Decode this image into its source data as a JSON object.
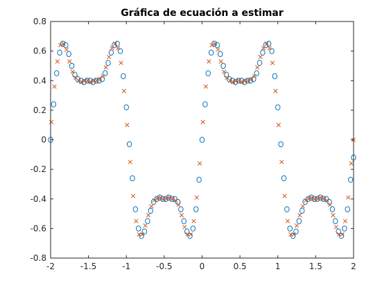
{
  "chart_data": {
    "type": "scatter",
    "title": "Gráfica de ecuación a estimar",
    "xlabel": "",
    "ylabel": "",
    "xlim": [
      -2,
      2
    ],
    "ylim": [
      -0.8,
      0.8
    ],
    "x_ticks": [
      -2,
      -1.5,
      -1,
      -0.5,
      0,
      0.5,
      1,
      1.5,
      2
    ],
    "x_tick_labels": [
      "-2",
      "-1.5",
      "-1",
      "-0.5",
      "0",
      "0.5",
      "1",
      "1.5",
      "2"
    ],
    "y_ticks": [
      -0.8,
      -0.6,
      -0.4,
      -0.2,
      0,
      0.2,
      0.4,
      0.6,
      0.8
    ],
    "y_tick_labels": [
      "-0.8",
      "-0.6",
      "-0.4",
      "-0.2",
      "0",
      "0.2",
      "0.4",
      "0.6",
      "0.8"
    ],
    "grid": false,
    "box": true,
    "series": [
      {
        "marker": "circle",
        "color": "#0072BD",
        "x": [
          -2.0,
          -1.96,
          -1.92,
          -1.88,
          -1.84,
          -1.8,
          -1.76,
          -1.72,
          -1.68,
          -1.64,
          -1.6,
          -1.56,
          -1.52,
          -1.48,
          -1.44,
          -1.4,
          -1.36,
          -1.32,
          -1.28,
          -1.24,
          -1.2,
          -1.16,
          -1.12,
          -1.08,
          -1.04,
          -1.0,
          -0.96,
          -0.92,
          -0.88,
          -0.84,
          -0.8,
          -0.76,
          -0.72,
          -0.68,
          -0.64,
          -0.6,
          -0.56,
          -0.52,
          -0.48,
          -0.44,
          -0.4,
          -0.36,
          -0.32,
          -0.28,
          -0.24,
          -0.2,
          -0.16,
          -0.12,
          -0.08,
          -0.04,
          0.0,
          0.04,
          0.08,
          0.12,
          0.16,
          0.2,
          0.24,
          0.28,
          0.32,
          0.36,
          0.4,
          0.44,
          0.48,
          0.52,
          0.56,
          0.6,
          0.64,
          0.68,
          0.72,
          0.76,
          0.8,
          0.84,
          0.88,
          0.92,
          0.96,
          1.0,
          1.04,
          1.08,
          1.12,
          1.16,
          1.2,
          1.24,
          1.28,
          1.32,
          1.36,
          1.4,
          1.44,
          1.48,
          1.52,
          1.56,
          1.6,
          1.64,
          1.68,
          1.72,
          1.76,
          1.8,
          1.84,
          1.88,
          1.92,
          1.96,
          2.0
        ],
        "y": [
          0.0,
          0.24,
          0.45,
          0.59,
          0.65,
          0.64,
          0.58,
          0.5,
          0.44,
          0.41,
          0.4,
          0.39,
          0.4,
          0.4,
          0.39,
          0.4,
          0.4,
          0.41,
          0.45,
          0.52,
          0.59,
          0.64,
          0.65,
          0.6,
          0.43,
          0.22,
          -0.03,
          -0.26,
          -0.47,
          -0.6,
          -0.65,
          -0.62,
          -0.55,
          -0.48,
          -0.42,
          -0.4,
          -0.39,
          -0.4,
          -0.4,
          -0.39,
          -0.4,
          -0.4,
          -0.42,
          -0.47,
          -0.55,
          -0.62,
          -0.65,
          -0.6,
          -0.47,
          -0.27,
          0.0,
          0.24,
          0.45,
          0.59,
          0.65,
          0.64,
          0.58,
          0.5,
          0.44,
          0.41,
          0.4,
          0.39,
          0.4,
          0.4,
          0.39,
          0.4,
          0.4,
          0.41,
          0.45,
          0.52,
          0.59,
          0.64,
          0.65,
          0.6,
          0.43,
          0.22,
          -0.03,
          -0.26,
          -0.47,
          -0.6,
          -0.65,
          -0.62,
          -0.55,
          -0.48,
          -0.42,
          -0.4,
          -0.39,
          -0.4,
          -0.4,
          -0.39,
          -0.4,
          -0.4,
          -0.42,
          -0.47,
          -0.55,
          -0.62,
          -0.65,
          -0.6,
          -0.47,
          -0.27,
          -0.12
        ]
      },
      {
        "marker": "x",
        "color": "#D95319",
        "x": [
          -1.99,
          -1.95,
          -1.91,
          -1.87,
          -1.83,
          -1.79,
          -1.75,
          -1.71,
          -1.67,
          -1.63,
          -1.59,
          -1.55,
          -1.51,
          -1.47,
          -1.43,
          -1.39,
          -1.35,
          -1.31,
          -1.27,
          -1.23,
          -1.19,
          -1.15,
          -1.11,
          -1.07,
          -1.03,
          -0.99,
          -0.95,
          -0.91,
          -0.87,
          -0.83,
          -0.79,
          -0.75,
          -0.71,
          -0.67,
          -0.63,
          -0.59,
          -0.55,
          -0.51,
          -0.47,
          -0.43,
          -0.39,
          -0.35,
          -0.31,
          -0.27,
          -0.23,
          -0.19,
          -0.15,
          -0.11,
          -0.07,
          -0.03,
          0.01,
          0.05,
          0.09,
          0.13,
          0.17,
          0.21,
          0.25,
          0.29,
          0.33,
          0.37,
          0.41,
          0.45,
          0.49,
          0.53,
          0.57,
          0.61,
          0.65,
          0.69,
          0.73,
          0.77,
          0.81,
          0.85,
          0.89,
          0.93,
          0.97,
          1.01,
          1.05,
          1.09,
          1.13,
          1.17,
          1.21,
          1.25,
          1.29,
          1.33,
          1.37,
          1.41,
          1.45,
          1.49,
          1.53,
          1.57,
          1.61,
          1.65,
          1.69,
          1.73,
          1.77,
          1.81,
          1.85,
          1.89,
          1.93,
          1.97,
          2.0
        ],
        "y": [
          0.12,
          0.36,
          0.53,
          0.64,
          0.65,
          0.61,
          0.53,
          0.46,
          0.42,
          0.4,
          0.39,
          0.4,
          0.4,
          0.39,
          0.4,
          0.4,
          0.41,
          0.43,
          0.49,
          0.56,
          0.62,
          0.65,
          0.62,
          0.52,
          0.33,
          0.1,
          -0.15,
          -0.38,
          -0.55,
          -0.64,
          -0.64,
          -0.58,
          -0.51,
          -0.45,
          -0.41,
          -0.4,
          -0.39,
          -0.4,
          -0.4,
          -0.39,
          -0.4,
          -0.41,
          -0.44,
          -0.51,
          -0.59,
          -0.64,
          -0.64,
          -0.55,
          -0.39,
          -0.16,
          0.12,
          0.36,
          0.53,
          0.64,
          0.65,
          0.61,
          0.53,
          0.46,
          0.42,
          0.4,
          0.39,
          0.4,
          0.4,
          0.39,
          0.4,
          0.4,
          0.41,
          0.43,
          0.49,
          0.56,
          0.62,
          0.65,
          0.62,
          0.52,
          0.33,
          0.1,
          -0.15,
          -0.38,
          -0.55,
          -0.64,
          -0.64,
          -0.58,
          -0.51,
          -0.45,
          -0.41,
          -0.4,
          -0.39,
          -0.4,
          -0.4,
          -0.39,
          -0.4,
          -0.41,
          -0.44,
          -0.51,
          -0.59,
          -0.64,
          -0.64,
          -0.55,
          -0.39,
          -0.16,
          0.0
        ]
      }
    ]
  }
}
